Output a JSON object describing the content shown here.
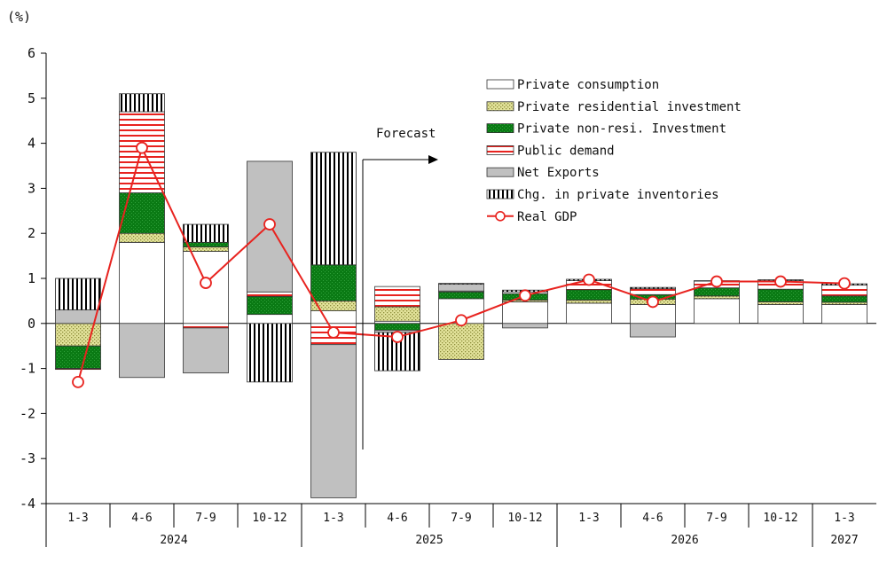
{
  "chart_data": {
    "type": "bar",
    "subtype": "stacked-bar-with-line",
    "ylabel": "(%)",
    "ylim": [
      -4,
      6
    ],
    "yticks": [
      6,
      5,
      4,
      3,
      2,
      1,
      0,
      -1,
      -2,
      -3,
      -4
    ],
    "categories": [
      "1-3",
      "4-6",
      "7-9",
      "10-12",
      "1-3",
      "4-6",
      "7-9",
      "10-12",
      "1-3",
      "4-6",
      "7-9",
      "10-12",
      "1-3"
    ],
    "years": [
      {
        "label": "2024",
        "start": 0,
        "end": 3
      },
      {
        "label": "2025",
        "start": 4,
        "end": 7
      },
      {
        "label": "2026",
        "start": 8,
        "end": 11
      },
      {
        "label": "2027",
        "start": 12,
        "end": 12
      }
    ],
    "forecast_label": "Forecast",
    "forecast_start_index": 5,
    "series": [
      {
        "name": "Private consumption",
        "pattern": "white",
        "values": [
          0,
          1.8,
          1.6,
          0.2,
          0.28,
          0.05,
          0.55,
          0.48,
          0.45,
          0.42,
          0.55,
          0.42,
          0.42
        ]
      },
      {
        "name": "Private residential investment",
        "pattern": "dots",
        "values": [
          -0.5,
          0.2,
          0.1,
          0.0,
          0.22,
          0.32,
          -0.8,
          0.04,
          0.07,
          0.12,
          0.06,
          0.06,
          0.05
        ]
      },
      {
        "name": "Private non-resi. Investment",
        "pattern": "green",
        "values": [
          -0.5,
          0.9,
          0.1,
          0.4,
          0.8,
          -0.15,
          0.15,
          0.14,
          0.23,
          0.1,
          0.18,
          0.28,
          0.14
        ]
      },
      {
        "name": "Public demand",
        "pattern": "hlines",
        "values": [
          -0.02,
          1.8,
          -0.1,
          0.1,
          -0.47,
          0.45,
          0.02,
          0.04,
          0.2,
          0.13,
          0.15,
          0.19,
          0.24
        ]
      },
      {
        "name": "Net Exports",
        "pattern": "gray",
        "values": [
          0.3,
          -1.2,
          -1.0,
          2.9,
          -3.4,
          -0.05,
          0.15,
          -0.1,
          0.0,
          -0.3,
          0.0,
          0.0,
          0.0
        ]
      },
      {
        "name": "Chg. in private inventories",
        "pattern": "vlines",
        "values": [
          0.7,
          0.4,
          0.4,
          -1.3,
          2.5,
          -0.85,
          0.02,
          0.04,
          0.03,
          0.03,
          0.01,
          0.02,
          0.03
        ]
      }
    ],
    "line": {
      "name": "Real GDP",
      "color": "#e8231f",
      "values": [
        -1.3,
        3.9,
        0.9,
        2.2,
        -0.2,
        -0.3,
        0.07,
        0.62,
        0.97,
        0.48,
        0.93,
        0.93,
        0.89
      ]
    },
    "colors": {
      "green": "#0a7a14",
      "gray": "#c0c0c0",
      "red": "#e8231f",
      "dots_bg": "#e2e29a",
      "dots_fg": "#8c8c3a"
    },
    "legend_position": "top-right",
    "grid": false
  }
}
